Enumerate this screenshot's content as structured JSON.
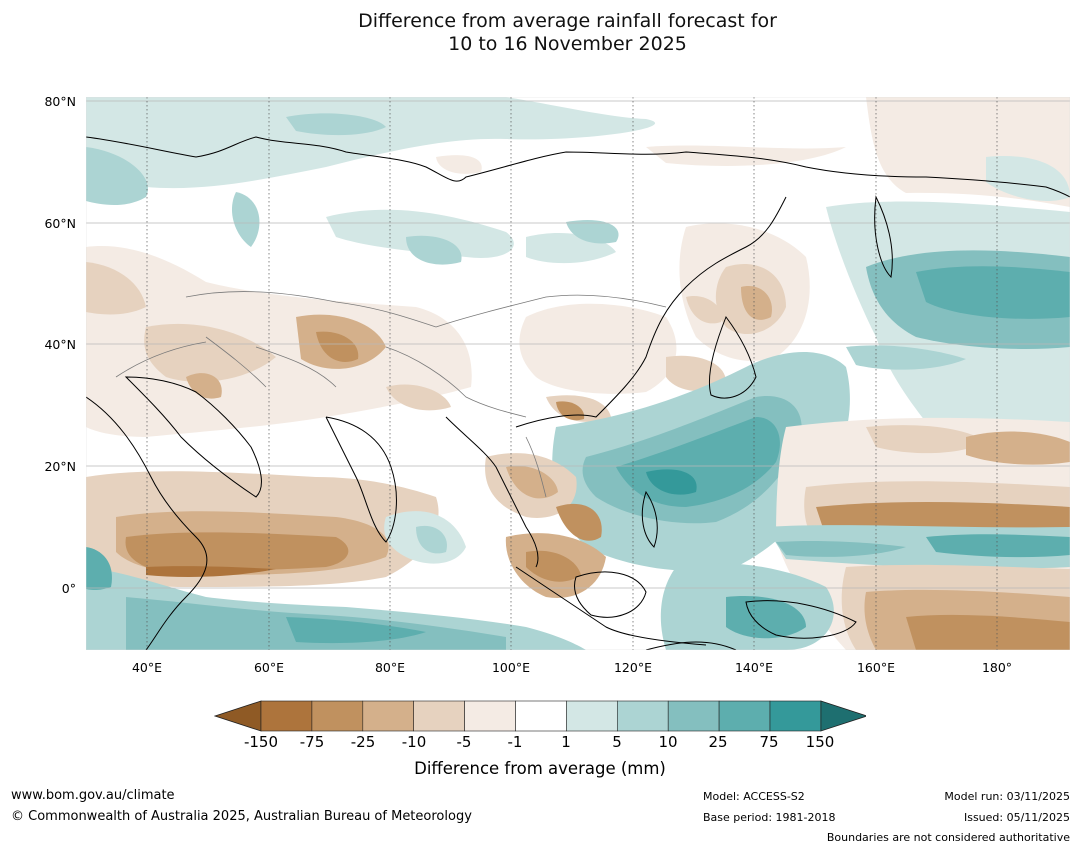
{
  "title_line1": "Difference from average rainfall forecast for",
  "title_line2": "10 to 16 November 2025",
  "map": {
    "lat_labels": [
      "80°N",
      "60°N",
      "40°N",
      "20°N",
      "0°"
    ],
    "lon_labels": [
      "40°E",
      "60°E",
      "80°E",
      "100°E",
      "120°E",
      "140°E",
      "160°E",
      "180°"
    ],
    "extent": {
      "lon_min": 30,
      "lon_max": 192,
      "lat_min": -10,
      "lat_max": 81
    }
  },
  "colorbar": {
    "title": "Difference from average (mm)",
    "tick_labels": [
      "-150",
      "-75",
      "-25",
      "-10",
      "-5",
      "-1",
      "1",
      "5",
      "10",
      "25",
      "75",
      "150"
    ],
    "colors": [
      "#8f5a25",
      "#ad743c",
      "#c0915f",
      "#d4b08b",
      "#e6d2bf",
      "#f4ebe4",
      "#ffffff",
      "#d3e7e5",
      "#acd4d3",
      "#84bfbf",
      "#5daeae",
      "#34999a",
      "#1e6f70"
    ]
  },
  "footer": {
    "website": "www.bom.gov.au/climate",
    "copyright": "© Commonwealth of Australia 2025, Australian Bureau of Meteorology",
    "model": "Model: ACCESS-S2",
    "base_period": "Base period: 1981-2018",
    "model_run": "Model run: 03/11/2025",
    "issued": "Issued: 05/11/2025",
    "disclaimer": "Boundaries are not considered authoritative"
  }
}
